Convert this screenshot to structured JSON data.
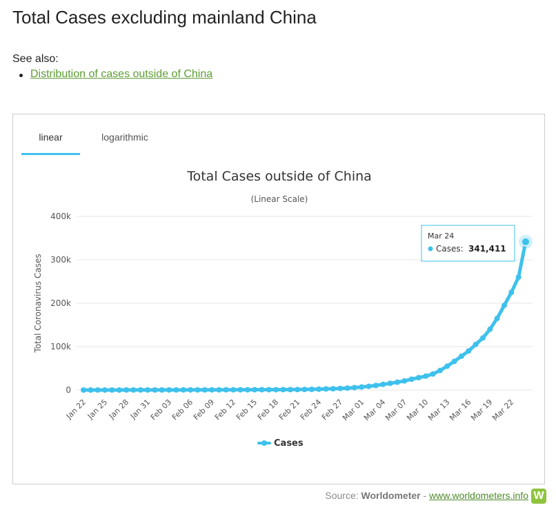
{
  "page": {
    "title": "Total Cases excluding mainland China",
    "see_also_label": "See also:",
    "see_also_link": "Distribution of cases outside of China"
  },
  "tabs": [
    {
      "label": "linear",
      "active": true
    },
    {
      "label": "logarithmic",
      "active": false
    }
  ],
  "chart_data": {
    "type": "line",
    "title": "Total Cases outside of China",
    "subtitle": "(Linear Scale)",
    "ylabel": "Total Coronavirus Cases",
    "xlabel": "",
    "ylim": [
      0,
      400000
    ],
    "yticks": [
      0,
      100000,
      200000,
      300000,
      400000
    ],
    "ytick_labels": [
      "0",
      "100k",
      "200k",
      "300k",
      "400k"
    ],
    "grid": true,
    "legend_position": "bottom-center",
    "x": [
      "Jan 22",
      "Jan 23",
      "Jan 24",
      "Jan 25",
      "Jan 26",
      "Jan 27",
      "Jan 28",
      "Jan 29",
      "Jan 30",
      "Jan 31",
      "Feb 01",
      "Feb 02",
      "Feb 03",
      "Feb 04",
      "Feb 05",
      "Feb 06",
      "Feb 07",
      "Feb 08",
      "Feb 09",
      "Feb 10",
      "Feb 11",
      "Feb 12",
      "Feb 13",
      "Feb 14",
      "Feb 15",
      "Feb 16",
      "Feb 17",
      "Feb 18",
      "Feb 19",
      "Feb 20",
      "Feb 21",
      "Feb 22",
      "Feb 23",
      "Feb 24",
      "Feb 25",
      "Feb 26",
      "Feb 27",
      "Feb 28",
      "Feb 29",
      "Mar 01",
      "Mar 02",
      "Mar 03",
      "Mar 04",
      "Mar 05",
      "Mar 06",
      "Mar 07",
      "Mar 08",
      "Mar 09",
      "Mar 10",
      "Mar 11",
      "Mar 12",
      "Mar 13",
      "Mar 14",
      "Mar 15",
      "Mar 16",
      "Mar 17",
      "Mar 18",
      "Mar 19",
      "Mar 20",
      "Mar 21",
      "Mar 22",
      "Mar 23",
      "Mar 24"
    ],
    "xtick_labels": [
      "Jan 22",
      "Jan 25",
      "Jan 28",
      "Jan 31",
      "Feb 03",
      "Feb 06",
      "Feb 09",
      "Feb 12",
      "Feb 15",
      "Feb 18",
      "Feb 21",
      "Feb 24",
      "Feb 27",
      "Mar 01",
      "Mar 04",
      "Mar 07",
      "Mar 10",
      "Mar 13",
      "Mar 16",
      "Mar 19",
      "Mar 22"
    ],
    "series": [
      {
        "name": "Cases",
        "color": "#3ec1ec",
        "values": [
          10,
          20,
          35,
          50,
          70,
          90,
          110,
          135,
          150,
          170,
          190,
          210,
          235,
          260,
          300,
          330,
          360,
          400,
          440,
          470,
          500,
          530,
          570,
          620,
          700,
          750,
          800,
          850,
          900,
          1000,
          1100,
          1300,
          1600,
          2000,
          2500,
          3000,
          3600,
          4400,
          5500,
          7000,
          8500,
          10500,
          13000,
          15500,
          18000,
          21000,
          25000,
          28500,
          32000,
          37000,
          45000,
          55000,
          66000,
          78000,
          90000,
          105000,
          120000,
          140000,
          165000,
          195000,
          225000,
          260000,
          341411
        ]
      }
    ],
    "tooltip": {
      "date": "Mar 24",
      "label": "Cases:",
      "value": "341,411"
    }
  },
  "footer": {
    "source_label": "Source:",
    "source_name": "Worldometer",
    "separator": "-",
    "source_link": "www.worldometers.info",
    "logo_letter": "W"
  },
  "colors": {
    "accent": "#3ec1ec",
    "link": "#5c9c32",
    "logo": "#8fc43e"
  }
}
